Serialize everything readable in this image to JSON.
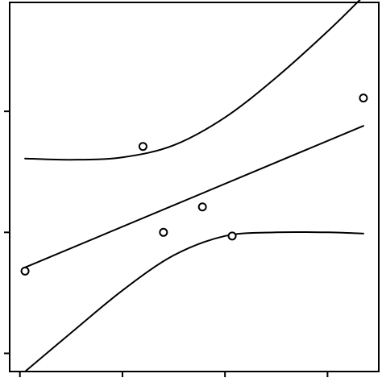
{
  "chart_data": {
    "type": "scatter",
    "title": "",
    "xlabel": "",
    "ylabel": "",
    "xlim": [
      -0.1,
      3.5
    ],
    "ylim": [
      -0.15,
      2.9
    ],
    "x_ticks": [
      0,
      1,
      2,
      3
    ],
    "y_ticks": [
      0,
      1,
      2
    ],
    "tick_labels_shown": false,
    "grid": false,
    "legend": "none",
    "points": [
      {
        "x": 0.05,
        "y": 0.68
      },
      {
        "x": 1.2,
        "y": 1.71
      },
      {
        "x": 1.4,
        "y": 1.0
      },
      {
        "x": 1.78,
        "y": 1.21
      },
      {
        "x": 2.07,
        "y": 0.97
      },
      {
        "x": 3.35,
        "y": 2.11
      }
    ],
    "fit_line": {
      "x": [
        0.05,
        3.35
      ],
      "y": [
        0.71,
        1.88
      ]
    },
    "confidence_band": {
      "x": [
        0.05,
        0.5,
        1.0,
        1.5,
        2.0,
        2.5,
        3.0,
        3.35
      ],
      "upper": [
        1.61,
        1.6,
        1.62,
        1.72,
        1.95,
        2.28,
        2.66,
        2.95
      ],
      "lower": [
        -0.15,
        0.17,
        0.52,
        0.81,
        0.97,
        1.0,
        1.0,
        0.99
      ]
    },
    "colors": {
      "background": "#ffffff",
      "ink": "#000000"
    }
  }
}
